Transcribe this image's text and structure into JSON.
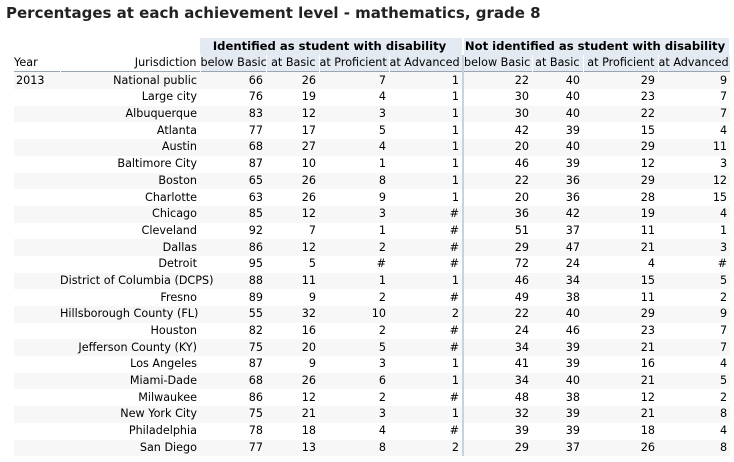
{
  "title": "Percentages at each achievement level - mathematics, grade 8",
  "headers": {
    "year": "Year",
    "jurisdiction": "Jurisdiction",
    "group_disability": "Identified as student with disability",
    "group_no_disability": "Not identified as student with disability",
    "levels": [
      "below Basic",
      "at Basic",
      "at Proficient",
      "at Advanced"
    ]
  },
  "rows": [
    {
      "year": "2013",
      "name": "National public",
      "d": [
        "66",
        "26",
        "7",
        "1"
      ],
      "n": [
        "22",
        "40",
        "29",
        "9"
      ]
    },
    {
      "year": "",
      "name": "Large city",
      "d": [
        "76",
        "19",
        "4",
        "1"
      ],
      "n": [
        "30",
        "40",
        "23",
        "7"
      ]
    },
    {
      "year": "",
      "name": "Albuquerque",
      "d": [
        "83",
        "12",
        "3",
        "1"
      ],
      "n": [
        "30",
        "40",
        "22",
        "7"
      ]
    },
    {
      "year": "",
      "name": "Atlanta",
      "d": [
        "77",
        "17",
        "5",
        "1"
      ],
      "n": [
        "42",
        "39",
        "15",
        "4"
      ]
    },
    {
      "year": "",
      "name": "Austin",
      "d": [
        "68",
        "27",
        "4",
        "1"
      ],
      "n": [
        "20",
        "40",
        "29",
        "11"
      ]
    },
    {
      "year": "",
      "name": "Baltimore City",
      "d": [
        "87",
        "10",
        "1",
        "1"
      ],
      "n": [
        "46",
        "39",
        "12",
        "3"
      ]
    },
    {
      "year": "",
      "name": "Boston",
      "d": [
        "65",
        "26",
        "8",
        "1"
      ],
      "n": [
        "22",
        "36",
        "29",
        "12"
      ]
    },
    {
      "year": "",
      "name": "Charlotte",
      "d": [
        "63",
        "26",
        "9",
        "1"
      ],
      "n": [
        "20",
        "36",
        "28",
        "15"
      ]
    },
    {
      "year": "",
      "name": "Chicago",
      "d": [
        "85",
        "12",
        "3",
        "#"
      ],
      "n": [
        "36",
        "42",
        "19",
        "4"
      ]
    },
    {
      "year": "",
      "name": "Cleveland",
      "d": [
        "92",
        "7",
        "1",
        "#"
      ],
      "n": [
        "51",
        "37",
        "11",
        "1"
      ]
    },
    {
      "year": "",
      "name": "Dallas",
      "d": [
        "86",
        "12",
        "2",
        "#"
      ],
      "n": [
        "29",
        "47",
        "21",
        "3"
      ]
    },
    {
      "year": "",
      "name": "Detroit",
      "d": [
        "95",
        "5",
        "#",
        "#"
      ],
      "n": [
        "72",
        "24",
        "4",
        "#"
      ]
    },
    {
      "year": "",
      "name": "District of Columbia (DCPS)",
      "d": [
        "88",
        "11",
        "1",
        "1"
      ],
      "n": [
        "46",
        "34",
        "15",
        "5"
      ]
    },
    {
      "year": "",
      "name": "Fresno",
      "d": [
        "89",
        "9",
        "2",
        "#"
      ],
      "n": [
        "49",
        "38",
        "11",
        "2"
      ]
    },
    {
      "year": "",
      "name": "Hillsborough County (FL)",
      "d": [
        "55",
        "32",
        "10",
        "2"
      ],
      "n": [
        "22",
        "40",
        "29",
        "9"
      ]
    },
    {
      "year": "",
      "name": "Houston",
      "d": [
        "82",
        "16",
        "2",
        "#"
      ],
      "n": [
        "24",
        "46",
        "23",
        "7"
      ]
    },
    {
      "year": "",
      "name": "Jefferson County (KY)",
      "d": [
        "75",
        "20",
        "5",
        "#"
      ],
      "n": [
        "34",
        "39",
        "21",
        "7"
      ]
    },
    {
      "year": "",
      "name": "Los Angeles",
      "d": [
        "87",
        "9",
        "3",
        "1"
      ],
      "n": [
        "41",
        "39",
        "16",
        "4"
      ]
    },
    {
      "year": "",
      "name": "Miami-Dade",
      "d": [
        "68",
        "26",
        "6",
        "1"
      ],
      "n": [
        "34",
        "40",
        "21",
        "5"
      ]
    },
    {
      "year": "",
      "name": "Milwaukee",
      "d": [
        "86",
        "12",
        "2",
        "#"
      ],
      "n": [
        "48",
        "38",
        "12",
        "2"
      ]
    },
    {
      "year": "",
      "name": "New York City",
      "d": [
        "75",
        "21",
        "3",
        "1"
      ],
      "n": [
        "32",
        "39",
        "21",
        "8"
      ]
    },
    {
      "year": "",
      "name": "Philadelphia",
      "d": [
        "78",
        "18",
        "4",
        "#"
      ],
      "n": [
        "39",
        "39",
        "18",
        "4"
      ]
    },
    {
      "year": "",
      "name": "San Diego",
      "d": [
        "77",
        "13",
        "8",
        "2"
      ],
      "n": [
        "29",
        "37",
        "26",
        "8"
      ]
    }
  ]
}
